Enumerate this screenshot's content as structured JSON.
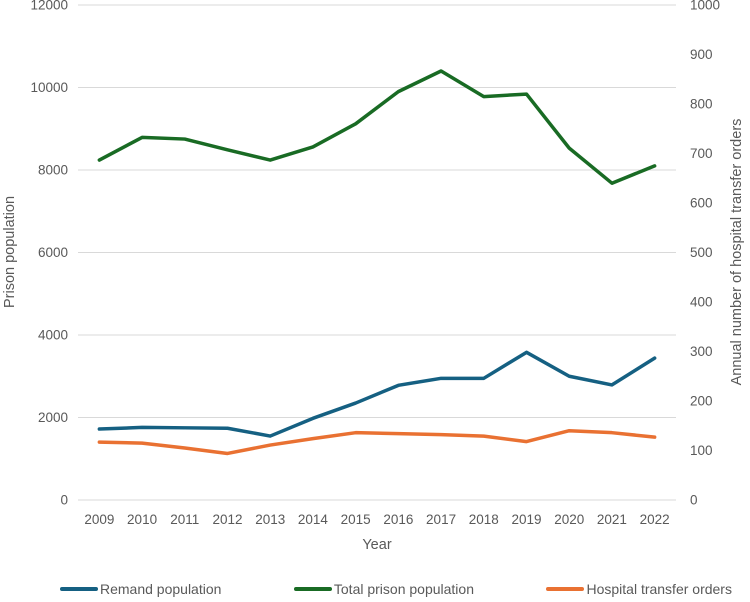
{
  "chart_data": {
    "type": "line",
    "title": "",
    "xlabel": "Year",
    "ylabel_left": "Prison population",
    "ylabel_right": "Annual number of hospital transfer orders",
    "x": [
      "2009",
      "2010",
      "2011",
      "2012",
      "2013",
      "2014",
      "2015",
      "2016",
      "2017",
      "2018",
      "2019",
      "2020",
      "2021",
      "2022"
    ],
    "ylim_left": [
      0,
      12000
    ],
    "ylim_right": [
      0,
      1000
    ],
    "yticks_left": [
      0,
      2000,
      4000,
      6000,
      8000,
      10000,
      12000
    ],
    "yticks_right": [
      0,
      100,
      200,
      300,
      400,
      500,
      600,
      700,
      800,
      900,
      1000
    ],
    "grid": "horizontal-at-left-ticks",
    "legend_position": "bottom",
    "series": [
      {
        "name": "Remand population",
        "axis": "left",
        "color": "#156082",
        "values": [
          1720,
          1760,
          1750,
          1740,
          1550,
          1980,
          2350,
          2780,
          2950,
          2950,
          3580,
          3000,
          2790,
          3440
        ]
      },
      {
        "name": "Total prison population",
        "axis": "left",
        "color": "#196B24",
        "values": [
          8240,
          8790,
          8750,
          8490,
          8240,
          8560,
          9120,
          9900,
          10400,
          9780,
          9840,
          8530,
          7680,
          8100
        ]
      },
      {
        "name": "Hospital transfer orders",
        "axis": "right",
        "color": "#E97132",
        "values": [
          117,
          115,
          105,
          94,
          111,
          124,
          136,
          134,
          132,
          129,
          118,
          140,
          136,
          127
        ]
      }
    ]
  },
  "colors": {
    "gridline": "#d9d9d9",
    "axis_text": "#595959",
    "background": "#ffffff"
  }
}
